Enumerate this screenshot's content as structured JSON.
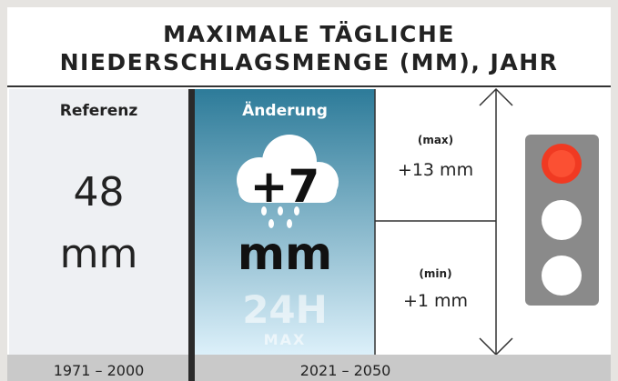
{
  "header": {
    "title_lines": [
      "MAXIMALE TÄGLICHE",
      "NIEDERSCHLAGSMENGE (MM), JAHR"
    ]
  },
  "reference": {
    "label": "Referenz",
    "value": "48",
    "unit": "mm",
    "period": "1971 – 2000"
  },
  "change": {
    "label": "Änderung",
    "value": "+7",
    "unit": "mm",
    "badge": "24H",
    "badge_sub": "MAX",
    "period": "2021 – 2050"
  },
  "range": {
    "max_label": "(max)",
    "max_value": "+13 mm",
    "min_label": "(min)",
    "min_value": "+1 mm"
  }
}
